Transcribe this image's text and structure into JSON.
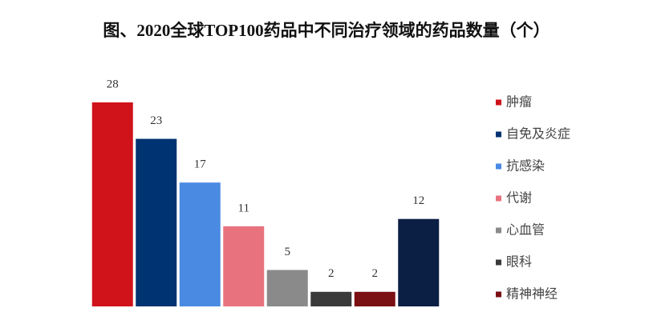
{
  "chart_data": {
    "type": "bar",
    "title": "图、2020全球TOP100药品中不同治疗领域的药品数量（个）",
    "categories": [
      "肿瘤",
      "自免及炎症",
      "抗感染",
      "代谢",
      "心血管",
      "眼科",
      "精神神经",
      null
    ],
    "values": [
      28,
      23,
      17,
      11,
      5,
      2,
      2,
      12
    ],
    "colors": [
      "#d0121b",
      "#003372",
      "#4a8ae2",
      "#e8737e",
      "#8a8a8a",
      "#3a3a3a",
      "#7a0f14",
      "#0b1e44"
    ],
    "legend": "right"
  }
}
